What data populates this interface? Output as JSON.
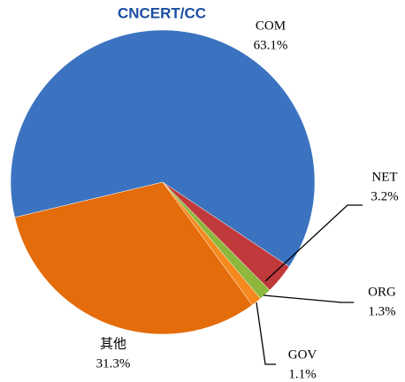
{
  "chart_data": {
    "type": "pie",
    "watermark": "CNCERT/CC",
    "categories": [
      "COM",
      "NET",
      "ORG",
      "GOV",
      "其他"
    ],
    "values": [
      63.1,
      3.2,
      1.3,
      1.1,
      31.3
    ],
    "value_labels": [
      "63.1%",
      "3.2%",
      "1.3%",
      "1.1%",
      "31.3%"
    ],
    "colors": [
      "#3b73c0",
      "#c0393b",
      "#8db83d",
      "#f5891e",
      "#e46c0a"
    ]
  }
}
